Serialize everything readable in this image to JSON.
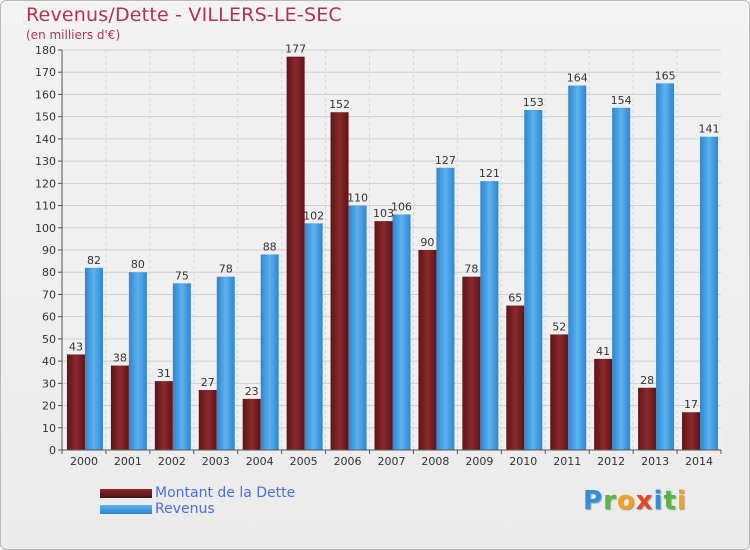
{
  "title": "Revenus/Dette - VILLERS-LE-SEC",
  "subtitle": "(en milliers d'€)",
  "logo": {
    "letters": [
      {
        "ch": "P",
        "color": "#2f8fd8"
      },
      {
        "ch": "r",
        "color": "#57b846"
      },
      {
        "ch": "o",
        "color": "#f2a21e"
      },
      {
        "ch": "x",
        "color": "#e04a2a"
      },
      {
        "ch": "i",
        "color": "#2f8fd8"
      },
      {
        "ch": "t",
        "color": "#57b846"
      },
      {
        "ch": "i",
        "color": "#f2a21e"
      }
    ]
  },
  "chart_data": {
    "type": "bar",
    "title": "Revenus/Dette - VILLERS-LE-SEC",
    "subtitle": "(en milliers d'€)",
    "categories": [
      "2000",
      "2001",
      "2002",
      "2003",
      "2004",
      "2005",
      "2006",
      "2007",
      "2008",
      "2009",
      "2010",
      "2011",
      "2012",
      "2013",
      "2014"
    ],
    "series": [
      {
        "name": "Montant de la Dette",
        "color": "#7a1f22",
        "values": [
          43,
          38,
          31,
          27,
          23,
          177,
          152,
          103,
          90,
          78,
          65,
          52,
          41,
          28,
          17
        ]
      },
      {
        "name": "Revenus",
        "color": "#3f9be0",
        "values": [
          82,
          80,
          75,
          78,
          88,
          102,
          110,
          106,
          127,
          121,
          153,
          164,
          154,
          165,
          141
        ]
      }
    ],
    "ylim": [
      0,
      180
    ],
    "ytick_step": 10,
    "grid": true,
    "data_labels": true,
    "legend_position": "bottom-left"
  }
}
